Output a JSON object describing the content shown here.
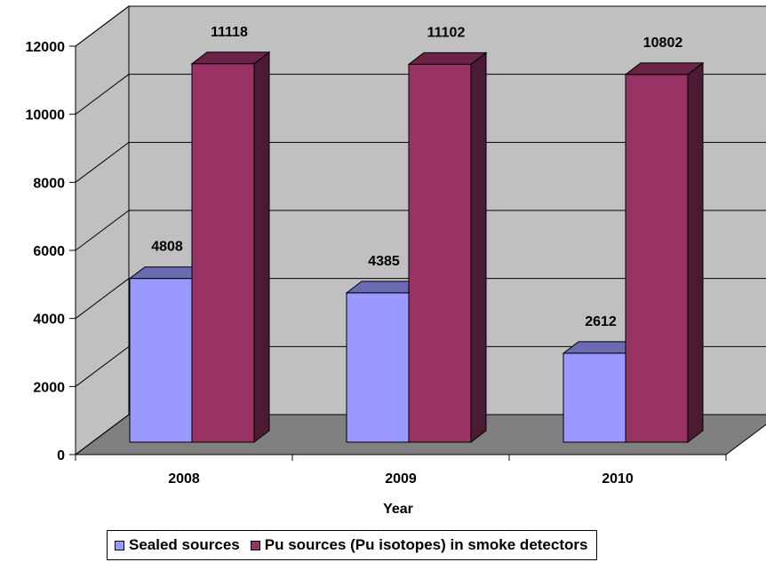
{
  "chart_data": {
    "type": "bar",
    "categories": [
      "2008",
      "2009",
      "2010"
    ],
    "series": [
      {
        "name": "Sealed sources",
        "values": [
          4808,
          4385,
          2612
        ],
        "color": "#9999FF"
      },
      {
        "name": "Pu sources (Pu isotopes) in smoke detectors",
        "values": [
          11118,
          11102,
          10802
        ],
        "color": "#993366"
      }
    ],
    "title": "",
    "xlabel": "Year",
    "ylabel": "",
    "ylim": [
      0,
      12000
    ],
    "yticks": [
      "0",
      "2000",
      "4000",
      "6000",
      "8000",
      "10000",
      "12000"
    ],
    "grid": true,
    "legend_position": "bottom",
    "style": "3d-clustered-column",
    "wall_color": "#C0C0C0",
    "floor_color": "#808080"
  }
}
